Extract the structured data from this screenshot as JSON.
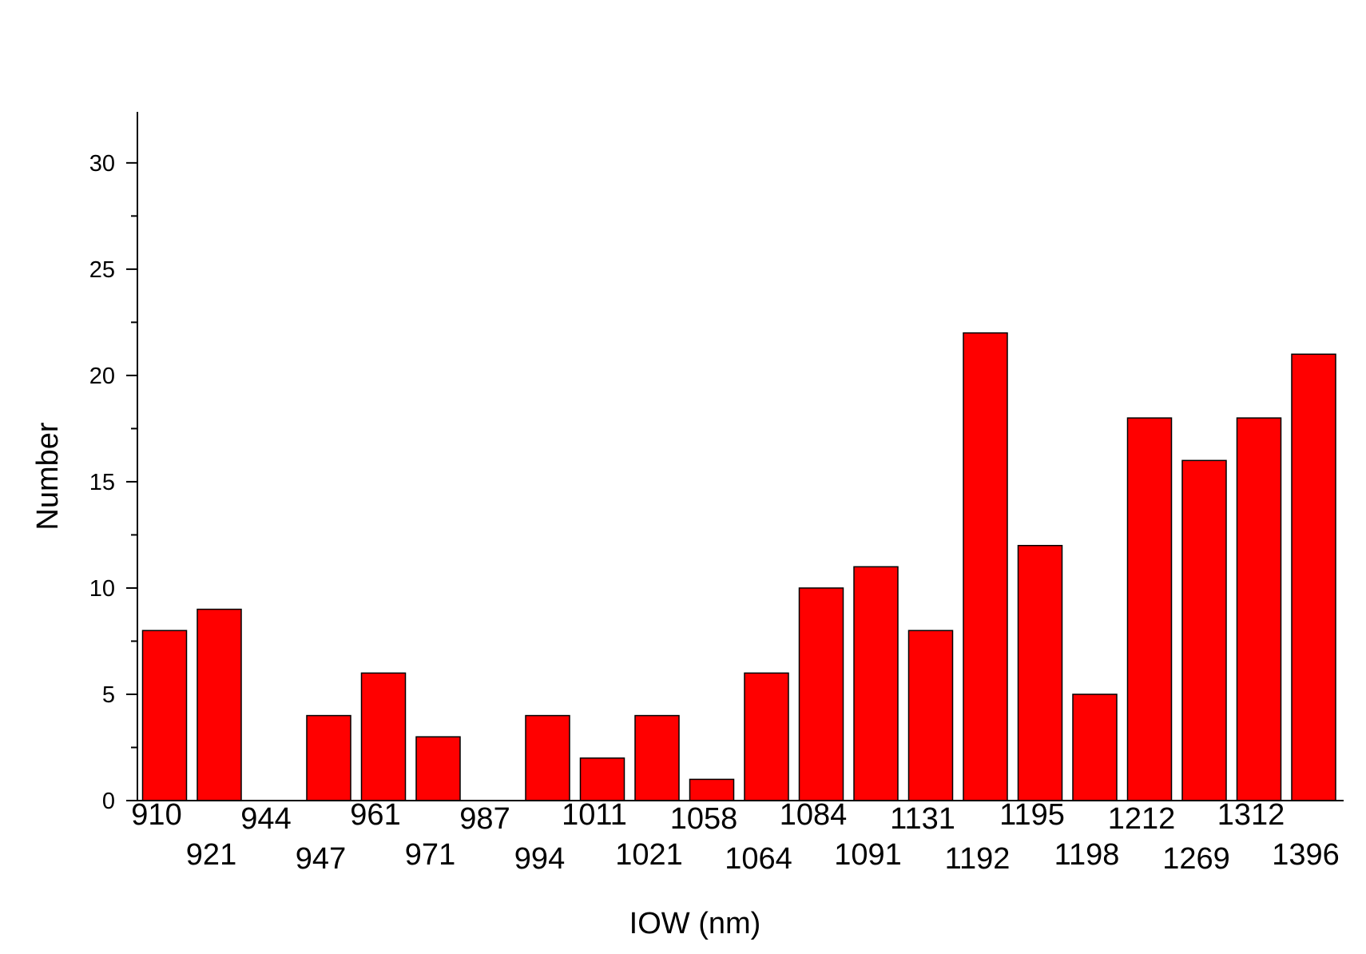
{
  "chart_data": {
    "type": "bar",
    "xlabel": "IOW (nm)",
    "ylabel": "Number",
    "ylim": [
      0,
      32.4
    ],
    "yticks": [
      0,
      5,
      10,
      15,
      20,
      25,
      30
    ],
    "categories": [
      "910",
      "921",
      "944",
      "947",
      "961",
      "971",
      "987",
      "994",
      "1011",
      "1021",
      "1058",
      "1064",
      "1084",
      "1091",
      "1131",
      "1192",
      "1195",
      "1198",
      "1212",
      "1269",
      "1312",
      "1396"
    ],
    "values": [
      8,
      9,
      0,
      4,
      6,
      3,
      0,
      4,
      2,
      4,
      1,
      6,
      10,
      11,
      8,
      22,
      12,
      5,
      18,
      16,
      18,
      21
    ],
    "bar_color": "#ff0000",
    "grid": false,
    "legend": "none"
  }
}
